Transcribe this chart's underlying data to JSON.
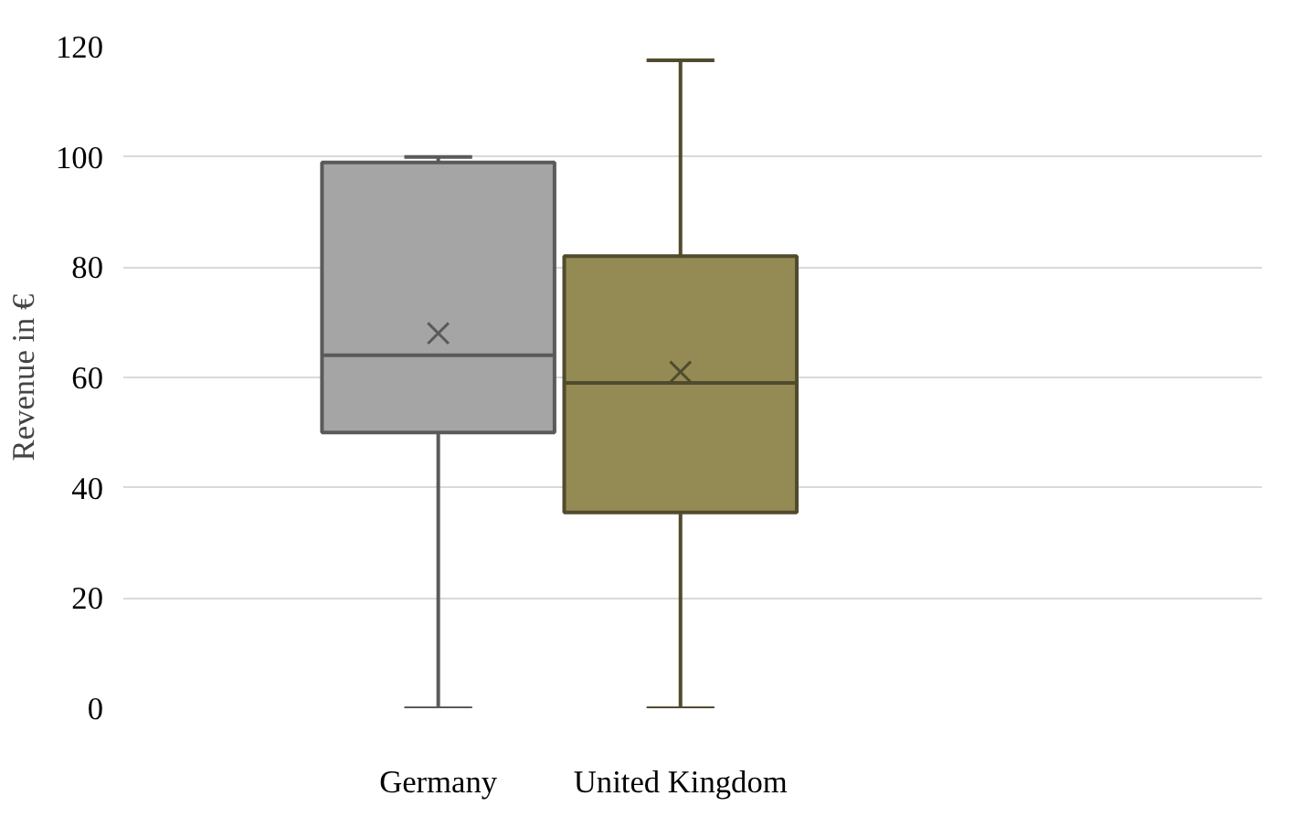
{
  "chart_data": {
    "type": "box",
    "ylabel": "Revenue in €",
    "categories": [
      "Germany",
      "United Kingdom"
    ],
    "colors": [
      "#a5a5a5",
      "#948a54"
    ],
    "boxes": [
      {
        "low": 0,
        "q1": 50,
        "median": 64,
        "q3": 99,
        "high": 100,
        "mean": 68
      },
      {
        "low": 0,
        "q1": 35.5,
        "median": 59,
        "q3": 82,
        "high": 117.5,
        "mean": 61
      }
    ],
    "ylim": [
      0,
      120
    ],
    "yticks": [
      0,
      20,
      40,
      60,
      80,
      100,
      120
    ],
    "grid": "y",
    "marker": "cross"
  }
}
